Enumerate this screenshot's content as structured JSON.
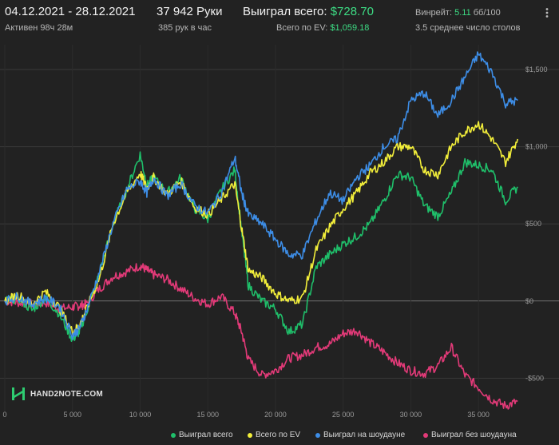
{
  "header": {
    "date_range": "04.12.2021 - 28.12.2021",
    "active_time": "Активен 98ч 28м",
    "hands": "37 942 Руки",
    "hands_per_hour": "385 рук в час",
    "won_total_label": "Выиграл всего:",
    "won_total_value": "$728.70",
    "ev_label": "Всего по EV:",
    "ev_value": "$1,059.18",
    "winrate_label": "Винрейт:",
    "winrate_value": "5.11",
    "winrate_unit": "бб/100",
    "avg_tables": "3.5 среднее число столов"
  },
  "logo": {
    "text": "HAND2NOTE.COM"
  },
  "colors": {
    "won_total": "#1fbf6a",
    "all_ev": "#f2ee3a",
    "showdown": "#3d8de6",
    "non_showdown": "#e23a78",
    "zero_line": "#8a8a8a",
    "grid": "#333333",
    "background": "#222222"
  },
  "chart_data": {
    "type": "line",
    "xlim": [
      0,
      38000
    ],
    "ylim": [
      -700,
      1640
    ],
    "x_ticks": [
      {
        "value": 0,
        "label": "0"
      },
      {
        "value": 5000,
        "label": "5 000"
      },
      {
        "value": 10000,
        "label": "10 000"
      },
      {
        "value": 15000,
        "label": "15 000"
      },
      {
        "value": 20000,
        "label": "20 000"
      },
      {
        "value": 25000,
        "label": "25 000"
      },
      {
        "value": 30000,
        "label": "30 000"
      },
      {
        "value": 35000,
        "label": "35 000"
      }
    ],
    "y_ticks": [
      {
        "value": 1500,
        "label": "$1,500"
      },
      {
        "value": 1000,
        "label": "$1,000"
      },
      {
        "value": 500,
        "label": "$500"
      },
      {
        "value": 0,
        "label": "$0"
      },
      {
        "value": -500,
        "label": "-$500"
      }
    ],
    "x": [
      0,
      1000,
      2000,
      3000,
      4000,
      5000,
      5500,
      6000,
      7000,
      8000,
      9000,
      10000,
      10500,
      11000,
      12000,
      13000,
      14000,
      15000,
      16000,
      17000,
      17500,
      18000,
      19000,
      20000,
      21000,
      22000,
      23000,
      24000,
      25000,
      26000,
      27000,
      28000,
      29000,
      30000,
      31000,
      32000,
      33000,
      34000,
      35000,
      36000,
      37000,
      37900
    ],
    "series": [
      {
        "name": "Выиграл всего",
        "color_key": "won_total",
        "values": [
          0,
          20,
          -60,
          20,
          -80,
          -250,
          -200,
          -80,
          180,
          500,
          720,
          950,
          750,
          800,
          700,
          800,
          600,
          530,
          720,
          850,
          450,
          100,
          0,
          -50,
          -200,
          -150,
          220,
          300,
          370,
          420,
          500,
          650,
          820,
          800,
          620,
          550,
          700,
          900,
          880,
          850,
          650,
          740
        ]
      },
      {
        "name": "Всего по EV",
        "color_key": "all_ev",
        "values": [
          0,
          40,
          -20,
          60,
          -40,
          -200,
          -160,
          -60,
          150,
          500,
          700,
          830,
          730,
          800,
          690,
          780,
          610,
          560,
          660,
          760,
          470,
          200,
          150,
          50,
          0,
          20,
          330,
          480,
          600,
          700,
          830,
          900,
          1000,
          1000,
          850,
          820,
          1000,
          1100,
          1150,
          1050,
          900,
          1050
        ]
      },
      {
        "name": "Выиграл на шоудауне",
        "color_key": "showdown",
        "values": [
          0,
          30,
          -20,
          20,
          -30,
          -220,
          -180,
          -70,
          190,
          500,
          720,
          780,
          700,
          800,
          680,
          760,
          620,
          570,
          700,
          930,
          700,
          560,
          500,
          400,
          300,
          300,
          520,
          700,
          650,
          800,
          880,
          1000,
          1050,
          1300,
          1350,
          1200,
          1300,
          1450,
          1600,
          1480,
          1280,
          1300
        ]
      },
      {
        "name": "Выиграл без шоудауна",
        "color_key": "non_showdown",
        "values": [
          0,
          -10,
          -20,
          -10,
          -50,
          -40,
          -30,
          -20,
          80,
          160,
          190,
          230,
          200,
          170,
          140,
          80,
          20,
          -20,
          30,
          -80,
          -200,
          -380,
          -480,
          -450,
          -370,
          -350,
          -300,
          -280,
          -210,
          -190,
          -270,
          -330,
          -400,
          -450,
          -470,
          -420,
          -300,
          -480,
          -560,
          -640,
          -680,
          -650
        ]
      }
    ],
    "legend_position": "bottom-right",
    "grid": true
  },
  "legend": [
    {
      "label": "Выиграл всего",
      "color_key": "won_total"
    },
    {
      "label": "Всего по EV",
      "color_key": "all_ev"
    },
    {
      "label": "Выиграл на шоудауне",
      "color_key": "showdown"
    },
    {
      "label": "Выиграл без шоудауна",
      "color_key": "non_showdown"
    }
  ]
}
